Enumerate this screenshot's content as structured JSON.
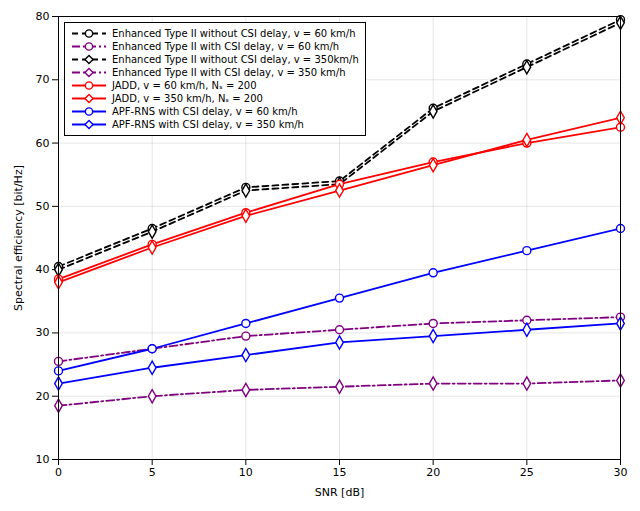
{
  "chart_data": {
    "type": "line",
    "x": [
      0,
      5,
      10,
      15,
      20,
      25,
      30
    ],
    "xlabel": "SNR [dB]",
    "ylabel": "Spectral efficiency [bit/Hz]",
    "xlim": [
      0,
      30
    ],
    "ylim": [
      10,
      80
    ],
    "xticks": [
      0,
      5,
      10,
      15,
      20,
      25,
      30
    ],
    "yticks": [
      10,
      20,
      30,
      40,
      50,
      60,
      70,
      80
    ],
    "grid": true,
    "legend": "upper left",
    "series": [
      {
        "name": "Enhanced Type II without CSI delay, v = 60 km/h",
        "color": "#000000",
        "line_style": "dashed",
        "marker": "circle",
        "values": [
          40.5,
          46.5,
          53.0,
          54.0,
          65.5,
          72.5,
          79.5
        ]
      },
      {
        "name": "Enhanced Type II with CSI delay, v = 60 km/h",
        "color": "#800080",
        "line_style": "dashdot",
        "marker": "circle",
        "values": [
          25.5,
          27.5,
          29.5,
          30.5,
          31.5,
          32.0,
          32.5
        ]
      },
      {
        "name": "Enhanced Type II without CSI delay, v = 350km/h",
        "color": "#000000",
        "line_style": "dashed",
        "marker": "diamond",
        "values": [
          40.0,
          46.0,
          52.5,
          53.5,
          65.0,
          72.0,
          79.0
        ]
      },
      {
        "name": "Enhanced Type II with CSI delay, v = 350 km/h",
        "color": "#800080",
        "line_style": "dashdot",
        "marker": "diamond",
        "values": [
          18.5,
          20.0,
          21.0,
          21.5,
          22.0,
          22.0,
          22.5
        ]
      },
      {
        "name": "JADD, v = 60 km/h, Nₛ = 200",
        "color": "#ff0000",
        "line_style": "solid",
        "marker": "circle",
        "values": [
          38.5,
          44.0,
          49.0,
          53.5,
          57.0,
          60.0,
          62.5
        ]
      },
      {
        "name": "JADD, v = 350 km/h, Nₛ = 200",
        "color": "#ff0000",
        "line_style": "solid",
        "marker": "diamond",
        "values": [
          38.0,
          43.5,
          48.5,
          52.5,
          56.5,
          60.5,
          64.0
        ]
      },
      {
        "name": "APF-RNS with CSI delay, v = 60 km/h",
        "color": "#0000ff",
        "line_style": "solid",
        "marker": "circle",
        "values": [
          24.0,
          27.5,
          31.5,
          35.5,
          39.5,
          43.0,
          46.5
        ]
      },
      {
        "name": "APF-RNS with CSI delay, v = 350 km/h",
        "color": "#0000ff",
        "line_style": "solid",
        "marker": "diamond",
        "values": [
          22.0,
          24.5,
          26.5,
          28.5,
          29.5,
          30.5,
          31.5
        ]
      }
    ]
  }
}
